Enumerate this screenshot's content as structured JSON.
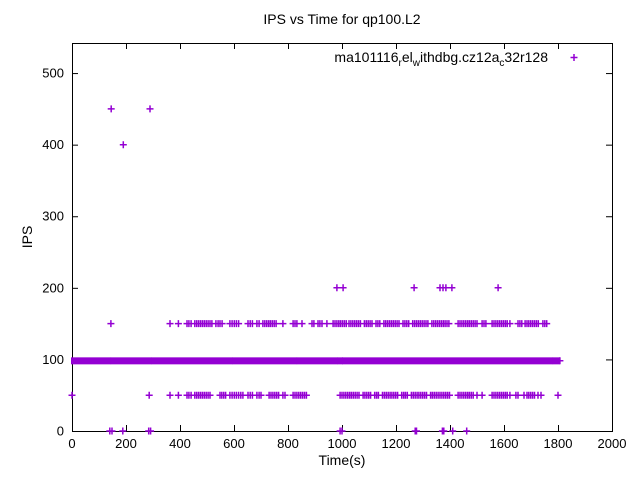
{
  "window": {
    "background": "#ffffff"
  },
  "chart_data": {
    "type": "scatter",
    "title": "IPS vs Time for qp100.L2",
    "xlabel": "Time(s)",
    "ylabel": "IPS",
    "xlim": [
      0,
      2000
    ],
    "ylim": [
      0,
      542
    ],
    "xticks": [
      0,
      200,
      400,
      600,
      800,
      1000,
      1200,
      1400,
      1600,
      1800,
      2000
    ],
    "yticks": [
      0,
      100,
      200,
      300,
      400,
      500
    ],
    "grid": false,
    "marker": "plus",
    "marker_color": "#9400d3",
    "legend": {
      "position": "top-right-inside",
      "parts": [
        {
          "text": "ma101116"
        },
        {
          "text": "r",
          "sub": true
        },
        {
          "text": "el"
        },
        {
          "text": "w",
          "sub": true
        },
        {
          "text": "ithdbg.cz12a"
        },
        {
          "text": "c",
          "sub": true
        },
        {
          "text": "32r128"
        }
      ]
    },
    "band": {
      "y": 98,
      "note": "near-continuous run of overlapping plus markers at IPS ~100",
      "segments": [
        [
          0,
          141
        ],
        [
          147,
          291
        ],
        [
          297,
          591
        ],
        [
          597,
          830
        ],
        [
          836,
          980
        ],
        [
          986,
          1000
        ],
        [
          1004,
          1778
        ],
        [
          1784,
          1803
        ]
      ]
    },
    "series": [
      {
        "y": 450,
        "x": [
          145,
          289
        ]
      },
      {
        "y": 400,
        "x": [
          190
        ]
      },
      {
        "y": 200,
        "x": [
          981,
          1004,
          1267,
          1363,
          1374,
          1385,
          1407,
          1578
        ]
      },
      {
        "y": 150,
        "x": [
          144,
          363,
          394,
          426,
          433,
          441,
          455,
          462,
          469,
          476,
          483,
          490,
          497,
          504,
          511,
          518,
          533,
          541,
          548,
          556,
          585,
          593,
          601,
          609,
          617,
          652,
          660,
          668,
          685,
          693,
          707,
          714,
          721,
          728,
          735,
          742,
          749,
          756,
          781,
          819,
          826,
          833,
          852,
          889,
          896,
          911,
          918,
          926,
          944,
          967,
          974,
          981,
          988,
          995,
          1002,
          1009,
          1016,
          1026,
          1033,
          1040,
          1047,
          1054,
          1061,
          1068,
          1083,
          1090,
          1097,
          1104,
          1111,
          1126,
          1133,
          1140,
          1155,
          1162,
          1169,
          1176,
          1183,
          1190,
          1197,
          1204,
          1211,
          1226,
          1233,
          1240,
          1247,
          1262,
          1269,
          1276,
          1283,
          1290,
          1297,
          1304,
          1311,
          1318,
          1333,
          1340,
          1347,
          1354,
          1361,
          1368,
          1375,
          1382,
          1389,
          1396,
          1430,
          1437,
          1444,
          1451,
          1458,
          1465,
          1472,
          1479,
          1486,
          1493,
          1500,
          1519,
          1526,
          1533,
          1556,
          1563,
          1570,
          1577,
          1584,
          1591,
          1598,
          1605,
          1612,
          1622,
          1652,
          1659,
          1666,
          1678,
          1685,
          1692,
          1699,
          1706,
          1713,
          1720,
          1727,
          1744,
          1751,
          1758
        ]
      },
      {
        "y": 98,
        "x": [
          1807
        ]
      },
      {
        "y": 50,
        "x": [
          0,
          286,
          363,
          394,
          426,
          433,
          441,
          455,
          462,
          469,
          476,
          483,
          490,
          497,
          504,
          511,
          548,
          555,
          562,
          569,
          585,
          593,
          601,
          609,
          617,
          625,
          633,
          652,
          660,
          668,
          685,
          693,
          700,
          730,
          737,
          744,
          751,
          758,
          765,
          781,
          789,
          819,
          826,
          833,
          840,
          847,
          854,
          861,
          868,
          993,
          1000,
          1007,
          1014,
          1021,
          1028,
          1035,
          1042,
          1049,
          1056,
          1063,
          1078,
          1085,
          1092,
          1099,
          1106,
          1121,
          1128,
          1135,
          1150,
          1157,
          1164,
          1171,
          1178,
          1185,
          1192,
          1199,
          1206,
          1221,
          1228,
          1235,
          1242,
          1257,
          1264,
          1271,
          1278,
          1285,
          1292,
          1299,
          1306,
          1313,
          1328,
          1335,
          1342,
          1349,
          1356,
          1363,
          1370,
          1377,
          1384,
          1391,
          1398,
          1430,
          1437,
          1444,
          1451,
          1458,
          1465,
          1472,
          1479,
          1486,
          1500,
          1519,
          1556,
          1563,
          1570,
          1577,
          1584,
          1591,
          1598,
          1605,
          1612,
          1622,
          1644,
          1652,
          1674,
          1685,
          1692,
          1699,
          1706,
          1713,
          1726,
          1737,
          1800
        ]
      },
      {
        "y": 0,
        "x": [
          140,
          148,
          188,
          284,
          291,
          993,
          1000,
          1271,
          1276,
          1372,
          1377,
          1410,
          1462
        ]
      }
    ],
    "axis_color": "#000000"
  }
}
